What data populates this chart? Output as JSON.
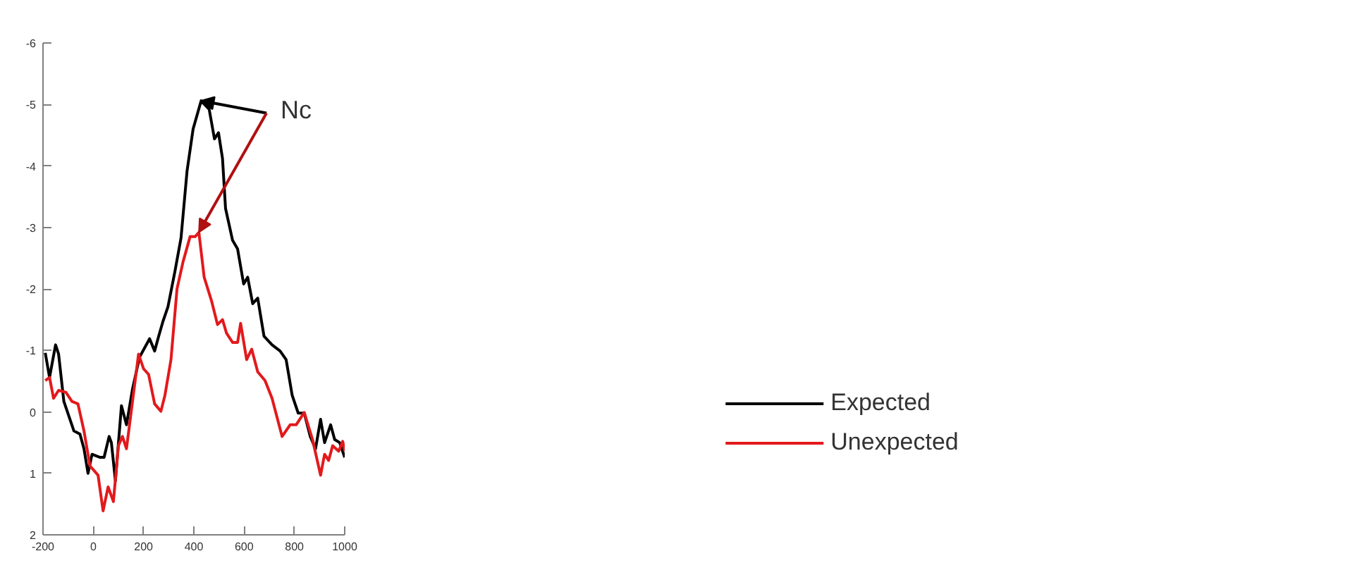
{
  "chart_data": {
    "type": "line",
    "xlim": [
      -200,
      1000
    ],
    "xticks": [
      -200,
      0,
      200,
      400,
      600,
      800,
      1000
    ],
    "ylim": [
      2,
      -6
    ],
    "yticks": [
      -6,
      -5,
      -4,
      -3,
      -2,
      -1,
      0,
      1,
      2
    ],
    "grid": false,
    "legend": "right",
    "marker": "none",
    "line_style": "solid",
    "annotations": [
      {
        "text": "Nc",
        "x": 429,
        "y": -5.06
      }
    ],
    "series": [
      {
        "name": "Expected",
        "color": "#000000",
        "x": [
          -191,
          -174,
          -150,
          -138,
          -117,
          -77,
          -53,
          -37,
          -21,
          -5,
          27,
          43,
          63,
          72,
          88,
          112,
          132,
          156,
          184,
          204,
          224,
          244,
          260,
          277,
          297,
          325,
          349,
          373,
          397,
          429,
          461,
          482,
          498,
          514,
          526,
          554,
          574,
          598,
          614,
          634,
          654,
          679,
          711,
          743,
          767,
          791,
          815,
          839,
          863,
          884,
          904,
          920,
          944,
          960,
          980,
          1000
        ],
        "values": [
          -0.96,
          -0.56,
          -1.09,
          -0.94,
          -0.17,
          0.31,
          0.36,
          0.6,
          1.0,
          0.69,
          0.74,
          0.74,
          0.4,
          0.5,
          1.12,
          -0.1,
          0.21,
          -0.37,
          -0.89,
          -1.04,
          -1.19,
          -0.99,
          -1.23,
          -1.47,
          -1.71,
          -2.29,
          -2.83,
          -3.92,
          -4.6,
          -5.06,
          -4.92,
          -4.44,
          -4.54,
          -4.12,
          -3.31,
          -2.79,
          -2.65,
          -2.08,
          -2.19,
          -1.76,
          -1.85,
          -1.23,
          -1.09,
          -0.99,
          -0.85,
          -0.27,
          0.02,
          0.02,
          0.4,
          0.6,
          0.12,
          0.5,
          0.21,
          0.45,
          0.5,
          0.74
        ]
      },
      {
        "name": "Unexpected",
        "color": "#e3191c",
        "x": [
          -191,
          -174,
          -158,
          -138,
          -109,
          -85,
          -61,
          -37,
          -13,
          19,
          39,
          59,
          80,
          100,
          116,
          132,
          156,
          180,
          200,
          220,
          244,
          269,
          285,
          309,
          333,
          357,
          385,
          405,
          420,
          441,
          470,
          494,
          514,
          530,
          554,
          574,
          586,
          610,
          630,
          654,
          683,
          711,
          751,
          783,
          807,
          839,
          872,
          904,
          920,
          936,
          952,
          976,
          992,
          1000
        ],
        "values": [
          -0.51,
          -0.56,
          -0.22,
          -0.35,
          -0.32,
          -0.17,
          -0.13,
          0.31,
          0.88,
          1.03,
          1.61,
          1.22,
          1.46,
          0.55,
          0.4,
          0.6,
          -0.17,
          -0.94,
          -0.7,
          -0.61,
          -0.13,
          -0.01,
          -0.27,
          -0.85,
          -2.0,
          -2.44,
          -2.85,
          -2.85,
          -2.92,
          -2.19,
          -1.81,
          -1.42,
          -1.5,
          -1.28,
          -1.13,
          -1.13,
          -1.44,
          -0.85,
          -1.02,
          -0.65,
          -0.51,
          -0.22,
          0.4,
          0.21,
          0.21,
          0.01,
          0.45,
          1.03,
          0.69,
          0.79,
          0.55,
          0.64,
          0.48,
          0.64
        ]
      }
    ]
  }
}
